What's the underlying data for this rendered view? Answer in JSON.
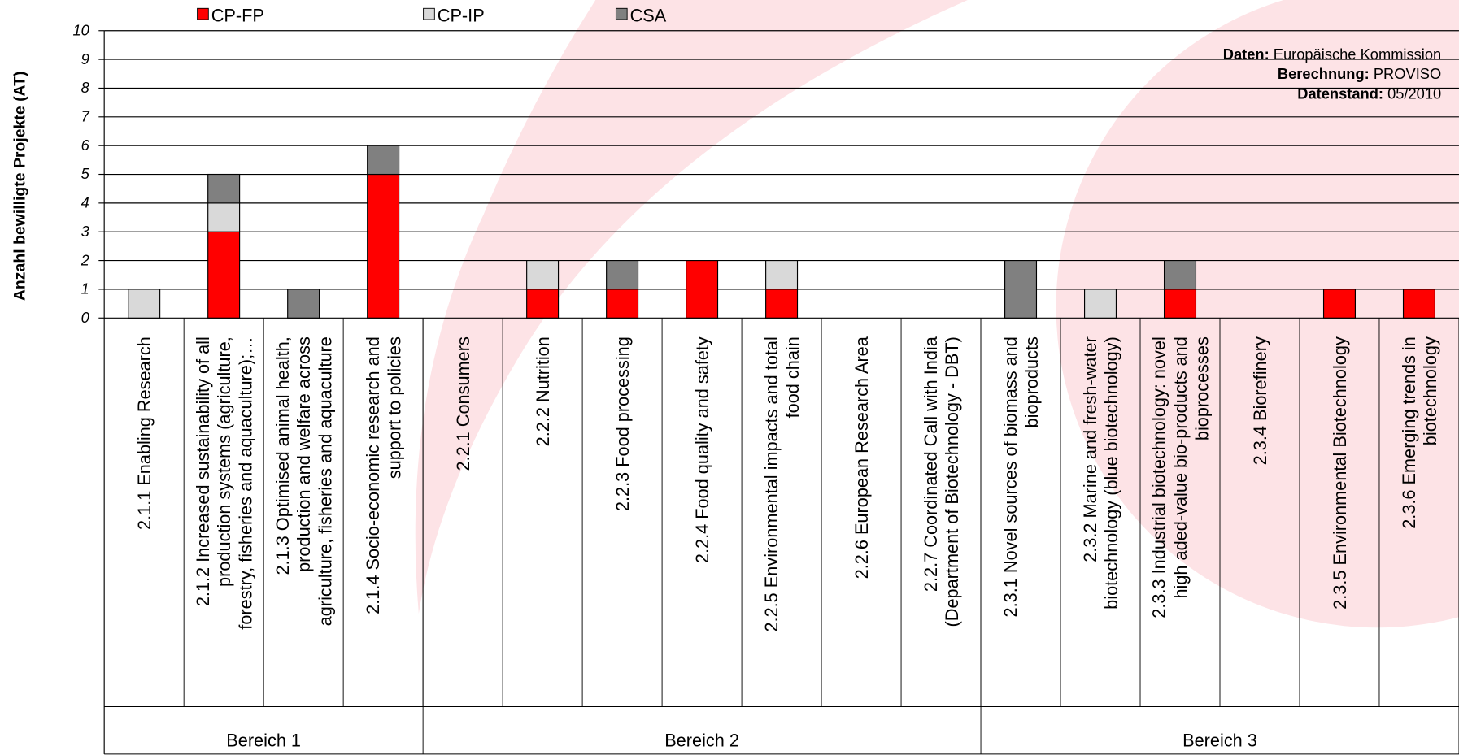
{
  "chart_data": {
    "type": "stacked_bar",
    "y_axis_label": "Anzahl bewilligte Projekte (AT)",
    "categories": [
      "2.1.1 Enabling Research",
      "2.1.2 Increased sustainability of all\nproduction systems (agriculture,\nforestry, fisheries and aquaculture);…",
      "2.1.3 Optimised animal health,\nproduction and welfare across\nagriculture, fisheries and aquaculture",
      "2.1.4 Socio-economic research and\nsupport to policies",
      "2.2.1 Consumers",
      "2.2.2 Nutrition",
      "2.2.3 Food processing",
      "2.2.4 Food quality and safety",
      "2.2.5 Environmental impacts and total\nfood chain",
      "2.2.6 European Research Area",
      "2.2.7 Coordinated Call with India\n(Department of Biotechnology - DBT)",
      "2.3.1 Novel sources of biomass and\nbioproducts",
      "2.3.2 Marine and fresh-water\nbiotechnology (blue biotechnology)",
      "2.3.3 Industrial biotechnology: novel\nhigh aded-value bio-products and\nbioprocesses",
      "2.3.4 Biorefinery",
      "2.3.5 Environmental Biotechnology",
      "2.3.6 Emerging trends in\nbiotechnology"
    ],
    "groups": [
      {
        "label": "Bereich 1",
        "size": 4
      },
      {
        "label": "Bereich 2",
        "size": 7
      },
      {
        "label": "Bereich 3",
        "size": 6
      }
    ],
    "series": [
      {
        "name": "CP-FP",
        "color": "#ff0000",
        "values": [
          0,
          3,
          0,
          5,
          0,
          1,
          1,
          2,
          1,
          0,
          0,
          0,
          0,
          1,
          0,
          1,
          1
        ]
      },
      {
        "name": "CP-IP",
        "color": "#d9d9d9",
        "values": [
          1,
          1,
          0,
          0,
          0,
          1,
          0,
          0,
          1,
          0,
          0,
          0,
          1,
          0,
          0,
          0,
          0
        ]
      },
      {
        "name": "CSA",
        "color": "#808080",
        "values": [
          0,
          1,
          1,
          1,
          0,
          0,
          1,
          0,
          0,
          0,
          0,
          2,
          0,
          1,
          0,
          0,
          0
        ]
      }
    ],
    "ylim": [
      0,
      10
    ],
    "yticks": [
      0,
      1,
      2,
      3,
      4,
      5,
      6,
      7,
      8,
      9,
      10
    ],
    "grid": true,
    "legend": "top",
    "source_note": [
      {
        "label": "Daten:",
        "text": "Europäische Kommission"
      },
      {
        "label": "Berechnung:",
        "text": "PROVISO"
      },
      {
        "label": "Datenstand:",
        "text": "05/2010"
      }
    ]
  }
}
